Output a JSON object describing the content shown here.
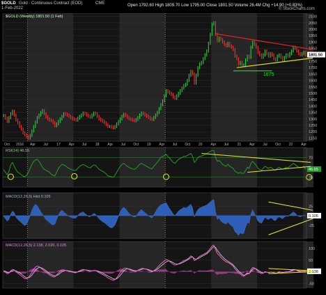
{
  "header": {
    "symbol": "$GOLD",
    "description": "Gold - Continuous Contract (EOD)",
    "exchange": "CME",
    "date": "1-Feb-2022",
    "stats": "Open 1792.60  High 1809.70  Low 1795.00  Close 1801.50  Volume 26.4M  Chg +14.90 (+0.83%)",
    "credit": "© StockCharts.com",
    "legend": "$GOLD (Weekly) 1801.50 (1 Feb)"
  },
  "colors": {
    "up": "#2ecc40",
    "down": "#ff2b2b",
    "rsi": "#22aa22",
    "macd_area": "#2e5fb8",
    "macd2": "#ff66dd",
    "signal": "#d9d9d9",
    "trend_yellow": "#e8e830",
    "trend_red": "#ee2222",
    "trend_green": "#22dd22",
    "band_dark": "#141414",
    "band_light": "#262626"
  },
  "chart_data": [
    {
      "type": "line",
      "name": "price",
      "series": [
        {
          "name": "$GOLD (Weekly)",
          "values": [
            1325,
            1305,
            1280,
            1310,
            1340,
            1360,
            1330,
            1290,
            1270,
            1240,
            1220,
            1190,
            1175,
            1160,
            1150,
            1170,
            1205,
            1240,
            1275,
            1310,
            1330,
            1350,
            1365,
            1340,
            1315,
            1300,
            1290,
            1285,
            1270,
            1245,
            1260,
            1280,
            1300,
            1320,
            1340,
            1335,
            1330,
            1320,
            1310,
            1300,
            1295,
            1290,
            1305,
            1320,
            1330,
            1345,
            1340,
            1330,
            1320,
            1315,
            1330,
            1345,
            1340,
            1320,
            1300,
            1290,
            1280,
            1270,
            1255,
            1240,
            1240,
            1235,
            1230,
            1240,
            1260,
            1280,
            1300,
            1320,
            1335,
            1325,
            1310,
            1300,
            1295,
            1290,
            1285,
            1295,
            1310,
            1330,
            1345,
            1340,
            1330,
            1320,
            1310,
            1300,
            1295,
            1310,
            1330,
            1350,
            1380,
            1410,
            1440,
            1480,
            1520,
            1510,
            1500,
            1490,
            1470,
            1460,
            1480,
            1500,
            1520,
            1540,
            1560,
            1570,
            1600,
            1640,
            1670,
            1650,
            1580,
            1640,
            1700,
            1730,
            1740,
            1770,
            1800,
            1830,
            1890,
            1960,
            2040,
            2050,
            1960,
            1910,
            1930,
            1920,
            1900,
            1880,
            1870,
            1890,
            1870,
            1860,
            1840,
            1790,
            1770,
            1730,
            1740,
            1720,
            1720,
            1760,
            1790,
            1780,
            1860,
            1900,
            1880,
            1860,
            1820,
            1800,
            1780,
            1800,
            1830,
            1810,
            1790,
            1810,
            1800,
            1770,
            1760,
            1790,
            1800,
            1780,
            1760,
            1780,
            1800,
            1790,
            1810,
            1830,
            1860,
            1850,
            1830,
            1810,
            1800,
            1810,
            1820,
            1800
          ]
        }
      ],
      "x_ticks": [
        "Oct",
        "2016",
        "Apr",
        "Jul",
        "17",
        "Apr",
        "Jul",
        "18",
        "Apr",
        "Jul",
        "Oct",
        "19",
        "Apr",
        "Jul",
        "Oct",
        "20",
        "Apr",
        "Jul",
        "21",
        "Apr",
        "Jul",
        "Oct",
        "22",
        "Apr"
      ],
      "y_ticks": [
        1150,
        1200,
        1250,
        1300,
        1350,
        1400,
        1450,
        1500,
        1550,
        1600,
        1650,
        1700,
        1750,
        1800,
        1850,
        1900,
        1950,
        2000,
        2050,
        2100
      ],
      "ylim": [
        1125,
        2125
      ],
      "last_value": "1801.50",
      "annotations": [
        "1675"
      ],
      "log_scale": false
    },
    {
      "type": "line",
      "name": "rsi",
      "title": "RSI(14) 46.55",
      "series": [
        {
          "name": "RSI(14)",
          "values": [
            45,
            40,
            35,
            42,
            55,
            60,
            52,
            45,
            40,
            38,
            35,
            32,
            31,
            34,
            40,
            48,
            56,
            62,
            65,
            66,
            62,
            56,
            50,
            46,
            44,
            42,
            40,
            36,
            34,
            33,
            40,
            48,
            52,
            56,
            55,
            53,
            50,
            48,
            46,
            45,
            44,
            44,
            48,
            52,
            54,
            56,
            54,
            52,
            50,
            49,
            52,
            55,
            54,
            50,
            46,
            44,
            42,
            40,
            37,
            33,
            32,
            31,
            30,
            34,
            40,
            46,
            52,
            56,
            58,
            55,
            52,
            50,
            48,
            47,
            46,
            48,
            52,
            56,
            58,
            56,
            54,
            52,
            50,
            48,
            47,
            52,
            56,
            60,
            65,
            70,
            72,
            74,
            76,
            72,
            68,
            64,
            60,
            58,
            62,
            66,
            68,
            70,
            72,
            72,
            74,
            76,
            78,
            72,
            60,
            64,
            70,
            72,
            73,
            74,
            76,
            78,
            80,
            82,
            84,
            84,
            70,
            62,
            64,
            60,
            56,
            54,
            52,
            56,
            52,
            50,
            48,
            42,
            40,
            38,
            40,
            38,
            38,
            44,
            50,
            48,
            58,
            62,
            58,
            54,
            48,
            46,
            44,
            48,
            52,
            50,
            48,
            50,
            49,
            45,
            44,
            48,
            50,
            48,
            46,
            48,
            50,
            49,
            52,
            55,
            58,
            56,
            53,
            50,
            49,
            50,
            52,
            46.55
          ]
        }
      ],
      "y_ticks": [
        30,
        70
      ],
      "ylim": [
        10,
        90
      ],
      "last_value": "46.55"
    },
    {
      "type": "area",
      "name": "macd1",
      "title": "MACD(12,26,5) Hist 0.105",
      "series": [
        {
          "name": "MACD Hist",
          "values": [
            -2,
            -8,
            -14,
            -10,
            4,
            12,
            8,
            -4,
            -10,
            -14,
            -18,
            -22,
            -26,
            -22,
            -12,
            0,
            14,
            24,
            30,
            26,
            18,
            10,
            4,
            -4,
            -10,
            -14,
            -18,
            -22,
            -24,
            -22,
            -10,
            2,
            10,
            14,
            10,
            6,
            2,
            -2,
            -4,
            -6,
            -7,
            -6,
            0,
            6,
            8,
            10,
            6,
            2,
            -2,
            -3,
            2,
            6,
            4,
            -2,
            -8,
            -12,
            -16,
            -18,
            -22,
            -26,
            -30,
            -32,
            -30,
            -24,
            -14,
            -2,
            10,
            18,
            22,
            18,
            12,
            6,
            2,
            -2,
            -4,
            -2,
            6,
            12,
            16,
            12,
            8,
            4,
            0,
            -4,
            -6,
            2,
            10,
            18,
            24,
            28,
            30,
            32,
            34,
            26,
            18,
            12,
            4,
            0,
            6,
            12,
            16,
            18,
            22,
            20,
            22,
            26,
            30,
            20,
            -4,
            8,
            16,
            20,
            22,
            24,
            26,
            28,
            32,
            36,
            40,
            42,
            10,
            -10,
            -6,
            -14,
            -18,
            -20,
            -22,
            -16,
            -22,
            -26,
            -30,
            -42,
            -46,
            -52,
            -44,
            -48,
            -46,
            -30,
            -18,
            -20,
            4,
            16,
            6,
            -2,
            -14,
            -18,
            -20,
            -12,
            -4,
            -8,
            -10,
            -6,
            -7,
            -12,
            -13,
            -6,
            -3,
            -6,
            -8,
            -4,
            -1,
            -2,
            2,
            6,
            10,
            7,
            2,
            -2,
            -3,
            -1,
            1,
            0.1
          ]
        }
      ],
      "y_ticks": [
        -25,
        0,
        25
      ],
      "ylim": [
        -60,
        60
      ],
      "last_value": "0.105"
    },
    {
      "type": "line",
      "name": "macd2",
      "title": "MACD(12,26,5) 2.138, 2.026, 0.105",
      "series": [
        {
          "name": "MACD",
          "values": [
            2,
            -2,
            -8,
            -6,
            4,
            10,
            8,
            0,
            -6,
            -12,
            -18,
            -24,
            -30,
            -30,
            -24,
            -14,
            -2,
            10,
            20,
            24,
            22,
            16,
            10,
            4,
            -2,
            -8,
            -14,
            -18,
            -22,
            -22,
            -14,
            -6,
            2,
            8,
            8,
            6,
            4,
            2,
            0,
            -2,
            -4,
            -4,
            0,
            4,
            8,
            10,
            8,
            6,
            4,
            2,
            4,
            6,
            6,
            2,
            -4,
            -8,
            -12,
            -16,
            -20,
            -26,
            -30,
            -34,
            -36,
            -34,
            -26,
            -16,
            -4,
            6,
            14,
            16,
            14,
            10,
            6,
            4,
            2,
            2,
            6,
            10,
            14,
            14,
            12,
            10,
            6,
            2,
            0,
            4,
            10,
            18,
            26,
            34,
            40,
            46,
            52,
            50,
            44,
            38,
            32,
            28,
            30,
            34,
            38,
            42,
            48,
            50,
            54,
            60,
            68,
            64,
            48,
            52,
            60,
            66,
            70,
            74,
            78,
            82,
            90,
            100,
            110,
            114,
            96,
            78,
            72,
            62,
            54,
            48,
            42,
            40,
            36,
            30,
            24,
            12,
            4,
            -6,
            -10,
            -16,
            -20,
            -12,
            -4,
            -8,
            8,
            18,
            16,
            10,
            2,
            -4,
            -8,
            -6,
            0,
            -2,
            -4,
            -2,
            -2,
            -6,
            -8,
            -4,
            0,
            -2,
            -4,
            -2,
            0,
            0,
            2,
            6,
            10,
            9,
            6,
            2,
            0,
            1,
            2,
            2.138
          ]
        },
        {
          "name": "Signal",
          "values": [
            4,
            2,
            -2,
            -4,
            0,
            4,
            6,
            4,
            0,
            -4,
            -10,
            -16,
            -22,
            -26,
            -26,
            -22,
            -14,
            -4,
            6,
            14,
            18,
            18,
            14,
            10,
            4,
            -2,
            -8,
            -12,
            -16,
            -18,
            -16,
            -12,
            -6,
            0,
            4,
            6,
            5,
            4,
            2,
            0,
            -1,
            -2,
            -1,
            1,
            4,
            7,
            8,
            7,
            6,
            4,
            4,
            5,
            5,
            4,
            1,
            -2,
            -6,
            -10,
            -14,
            -18,
            -22,
            -26,
            -30,
            -32,
            -30,
            -24,
            -16,
            -6,
            4,
            10,
            12,
            12,
            10,
            7,
            5,
            4,
            5,
            7,
            10,
            12,
            12,
            11,
            9,
            6,
            3,
            3,
            6,
            11,
            17,
            24,
            30,
            36,
            42,
            46,
            46,
            43,
            39,
            35,
            33,
            33,
            35,
            38,
            42,
            46,
            50,
            55,
            61,
            63,
            56,
            54,
            56,
            60,
            65,
            69,
            73,
            77,
            84,
            92,
            101,
            108,
            104,
            92,
            82,
            72,
            64,
            56,
            50,
            45,
            40,
            35,
            29,
            20,
            12,
            3,
            -4,
            -10,
            -15,
            -14,
            -9,
            -8,
            1,
            10,
            14,
            12,
            7,
            2,
            -3,
            -5,
            -2,
            -2,
            -3,
            -2,
            -2,
            -4,
            -6,
            -5,
            -2,
            -2,
            -3,
            -2,
            -1,
            -0.5,
            1,
            4,
            7,
            8,
            7,
            4,
            2,
            1.5,
            2,
            2.026
          ]
        }
      ],
      "y_ticks": [
        -50,
        0,
        50,
        100
      ],
      "ylim": [
        -70,
        130
      ],
      "last_value": "2.138"
    }
  ],
  "side_values": {
    "price_marker": "1801.50",
    "rsi_marker": "46.55",
    "macd1_marker": "0.105",
    "macd2_marker": "2.138"
  }
}
